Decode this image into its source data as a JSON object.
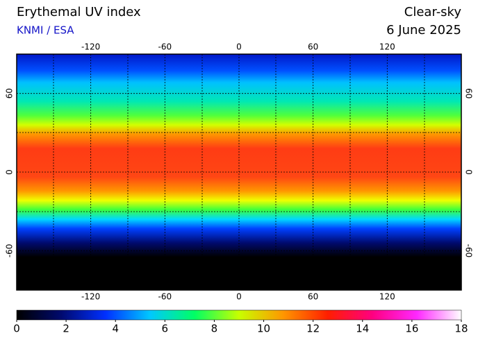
{
  "chart_data": {
    "type": "map",
    "title": "Erythemal UV index",
    "subtitle": "KNMI / ESA",
    "condition": "Clear-sky",
    "date": "6 June 2025",
    "xlim": [
      -180,
      180
    ],
    "xticks": [
      -120,
      -60,
      0,
      60,
      120
    ],
    "ylim": [
      -90,
      90
    ],
    "yticks": [
      -60,
      0,
      60
    ],
    "colorbar": {
      "lim": [
        0,
        18
      ],
      "ticks": [
        0,
        2,
        4,
        6,
        8,
        10,
        12,
        14,
        16,
        18
      ],
      "colors": [
        "#000000",
        "#000a6e",
        "#0030ff",
        "#00c8ff",
        "#00ff64",
        "#c8ff00",
        "#ff9600",
        "#ff1e00",
        "#ff0080",
        "#ff28ff",
        "#ffffff"
      ]
    }
  }
}
